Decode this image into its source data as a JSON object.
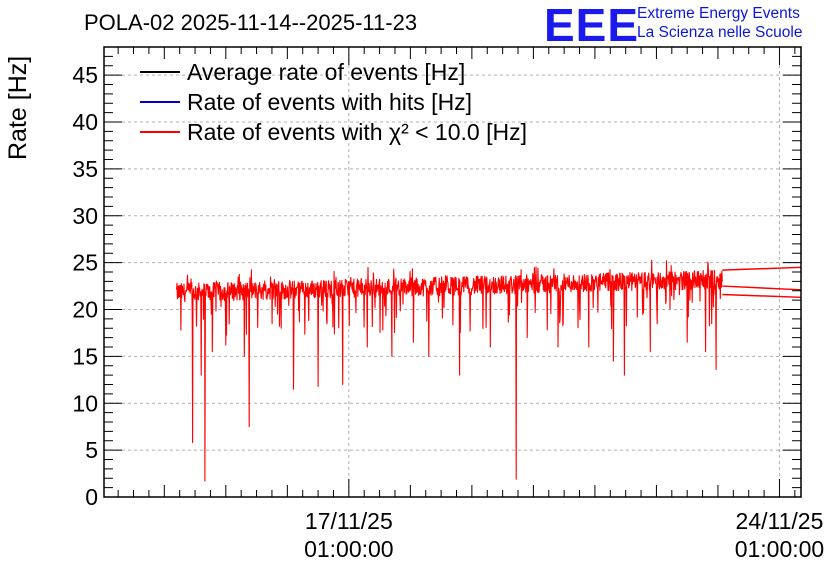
{
  "title": "POLA-02 2025-11-14--2025-11-23",
  "logo": {
    "text": "EEE",
    "line1": "Extreme Energy Events",
    "line2": "La Scienza nelle Scuole"
  },
  "colors": {
    "average": "#000000",
    "hits": "#0000cc",
    "chi2": "#ff0000",
    "logo": "#1a1aee",
    "grid": "#b0b0b0"
  },
  "chart_data": {
    "type": "line",
    "ylabel": "Rate [Hz]",
    "ylim": [
      0,
      48
    ],
    "yticks": [
      0,
      5,
      10,
      15,
      20,
      25,
      30,
      35,
      40,
      45
    ],
    "xticks": [
      {
        "line1": "17/11/25",
        "line2": "01:00:00",
        "day": 3.0
      },
      {
        "line1": "24/11/25",
        "line2": "01:00:00",
        "day": 10.0
      }
    ],
    "xrange_days": [
      -0.98,
      10.35
    ],
    "x_unit": "days since 2025-11-14 01:00:00",
    "legend": [
      {
        "label": "Average rate of events [Hz]",
        "color": "#000000"
      },
      {
        "label": "Rate of events with hits [Hz]",
        "color": "#0000cc"
      },
      {
        "label": "Rate of events with χ² < 10.0 [Hz]",
        "color": "#ff0000"
      }
    ],
    "series_summary": {
      "start_day": 0.2,
      "end_day": 9.07,
      "baseline_start": 21.8,
      "baseline_end": 23.2,
      "noise_amplitude": 1.0,
      "dips": [
        {
          "day": 0.27,
          "value": 17.8
        },
        {
          "day": 0.46,
          "value": 5.8
        },
        {
          "day": 0.6,
          "value": 13.0
        },
        {
          "day": 0.66,
          "value": 1.7
        },
        {
          "day": 0.78,
          "value": 15.5
        },
        {
          "day": 1.0,
          "value": 16.2
        },
        {
          "day": 1.38,
          "value": 7.5
        },
        {
          "day": 1.3,
          "value": 15.0
        },
        {
          "day": 1.9,
          "value": 18.0
        },
        {
          "day": 2.1,
          "value": 11.5
        },
        {
          "day": 2.5,
          "value": 11.8
        },
        {
          "day": 2.9,
          "value": 12.0
        },
        {
          "day": 3.3,
          "value": 16.0
        },
        {
          "day": 3.7,
          "value": 15.0
        },
        {
          "day": 4.05,
          "value": 16.5
        },
        {
          "day": 4.3,
          "value": 15.0
        },
        {
          "day": 4.8,
          "value": 13.0
        },
        {
          "day": 5.3,
          "value": 16.0
        },
        {
          "day": 5.72,
          "value": 1.9
        },
        {
          "day": 5.9,
          "value": 17.0
        },
        {
          "day": 6.4,
          "value": 16.0
        },
        {
          "day": 6.9,
          "value": 16.0
        },
        {
          "day": 7.3,
          "value": 14.5
        },
        {
          "day": 7.48,
          "value": 13.0
        },
        {
          "day": 7.9,
          "value": 15.5
        },
        {
          "day": 8.5,
          "value": 16.5
        },
        {
          "day": 8.8,
          "value": 15.5
        },
        {
          "day": 8.97,
          "value": 13.6
        }
      ],
      "trailing_lines": [
        {
          "from_value": 24.2,
          "to_value": 24.5
        },
        {
          "from_value": 22.5,
          "to_value": 22.1
        },
        {
          "from_value": 21.6,
          "to_value": 21.3
        }
      ]
    }
  }
}
